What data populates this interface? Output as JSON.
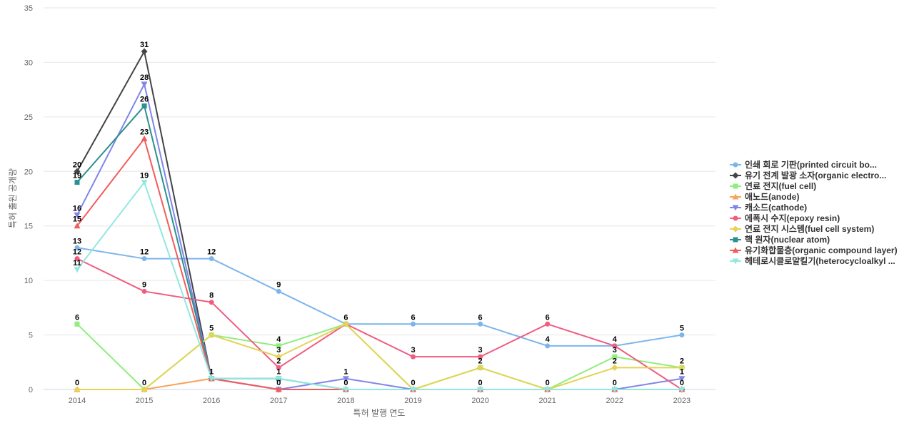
{
  "chart_data": {
    "type": "line",
    "xlabel": "특허 발행 연도",
    "ylabel": "특허 출원 공개량",
    "ylim": [
      0,
      35
    ],
    "yticks": [
      0,
      5,
      10,
      15,
      20,
      25,
      30,
      35
    ],
    "grid": true,
    "legend_position": "right",
    "categories": [
      "2014",
      "2015",
      "2016",
      "2017",
      "2018",
      "2019",
      "2020",
      "2021",
      "2022",
      "2023"
    ],
    "series": [
      {
        "name": "인쇄 회로 기판(printed circuit bo...",
        "color": "#7cb5ec",
        "marker": "circle",
        "values": [
          13,
          12,
          12,
          9,
          6,
          6,
          6,
          4,
          4,
          5
        ]
      },
      {
        "name": "유기 전계 발광 소자(organic electro...",
        "color": "#434348",
        "marker": "diamond",
        "values": [
          20,
          31,
          1,
          0,
          0,
          0,
          0,
          0,
          0,
          0
        ]
      },
      {
        "name": "연료 전지(fuel cell)",
        "color": "#90ed7d",
        "marker": "square",
        "values": [
          6,
          0,
          5,
          4,
          6,
          0,
          2,
          0,
          3,
          2
        ]
      },
      {
        "name": "애노드(anode)",
        "color": "#f7a35c",
        "marker": "triangle",
        "values": [
          0,
          0,
          1,
          0,
          0,
          0,
          0,
          0,
          0,
          0
        ]
      },
      {
        "name": "캐소드(cathode)",
        "color": "#8085e9",
        "marker": "triangle-down",
        "values": [
          16,
          28,
          1,
          0,
          1,
          0,
          0,
          0,
          0,
          1
        ]
      },
      {
        "name": "에폭시 수지(epoxy resin)",
        "color": "#f15c80",
        "marker": "circle",
        "values": [
          12,
          9,
          8,
          2,
          6,
          3,
          3,
          6,
          4,
          0
        ]
      },
      {
        "name": "연료 전지 시스템(fuel cell system)",
        "color": "#e4d354",
        "marker": "diamond",
        "values": [
          0,
          0,
          5,
          3,
          6,
          0,
          2,
          0,
          2,
          2
        ]
      },
      {
        "name": "핵 원자(nuclear atom)",
        "color": "#2b908f",
        "marker": "square",
        "values": [
          19,
          26,
          1,
          1,
          0,
          0,
          0,
          0,
          0,
          0
        ]
      },
      {
        "name": "유기화합물층(organic compound layer)",
        "color": "#f45b5b",
        "marker": "triangle",
        "values": [
          15,
          23,
          1,
          0,
          0,
          0,
          0,
          0,
          0,
          0
        ]
      },
      {
        "name": "헤테로시클로알킬기(heterocycloalkyl ...",
        "color": "#91e8e1",
        "marker": "triangle-down",
        "values": [
          11,
          19,
          1,
          1,
          0,
          0,
          0,
          0,
          0,
          0
        ]
      }
    ],
    "data_labels": [
      {
        "category": "2014",
        "value": 20,
        "text": "20"
      },
      {
        "category": "2014",
        "value": 19,
        "text": "19"
      },
      {
        "category": "2014",
        "value": 16,
        "text": "16"
      },
      {
        "category": "2014",
        "value": 15,
        "text": "15"
      },
      {
        "category": "2014",
        "value": 13,
        "text": "13"
      },
      {
        "category": "2014",
        "value": 12,
        "text": "12"
      },
      {
        "category": "2014",
        "value": 11,
        "text": "11"
      },
      {
        "category": "2014",
        "value": 6,
        "text": "6"
      },
      {
        "category": "2014",
        "value": 0,
        "text": "0"
      },
      {
        "category": "2015",
        "value": 31,
        "text": "31"
      },
      {
        "category": "2015",
        "value": 28,
        "text": "28"
      },
      {
        "category": "2015",
        "value": 26,
        "text": "26"
      },
      {
        "category": "2015",
        "value": 23,
        "text": "23"
      },
      {
        "category": "2015",
        "value": 19,
        "text": "19"
      },
      {
        "category": "2015",
        "value": 12,
        "text": "12"
      },
      {
        "category": "2015",
        "value": 9,
        "text": "9"
      },
      {
        "category": "2015",
        "value": 0,
        "text": "0"
      },
      {
        "category": "2016",
        "value": 12,
        "text": "12"
      },
      {
        "category": "2016",
        "value": 8,
        "text": "8"
      },
      {
        "category": "2016",
        "value": 5,
        "text": "5"
      },
      {
        "category": "2016",
        "value": 1,
        "text": "1"
      },
      {
        "category": "2017",
        "value": 9,
        "text": "9"
      },
      {
        "category": "2017",
        "value": 4,
        "text": "4"
      },
      {
        "category": "2017",
        "value": 3,
        "text": "3"
      },
      {
        "category": "2017",
        "value": 2,
        "text": "2"
      },
      {
        "category": "2017",
        "value": 1,
        "text": "1"
      },
      {
        "category": "2017",
        "value": 0,
        "text": "0"
      },
      {
        "category": "2018",
        "value": 6,
        "text": "6"
      },
      {
        "category": "2018",
        "value": 1,
        "text": "1"
      },
      {
        "category": "2018",
        "value": 0,
        "text": "0"
      },
      {
        "category": "2019",
        "value": 6,
        "text": "6"
      },
      {
        "category": "2019",
        "value": 3,
        "text": "3"
      },
      {
        "category": "2019",
        "value": 0,
        "text": "0"
      },
      {
        "category": "2020",
        "value": 6,
        "text": "6"
      },
      {
        "category": "2020",
        "value": 3,
        "text": "3"
      },
      {
        "category": "2020",
        "value": 2,
        "text": "2"
      },
      {
        "category": "2020",
        "value": 0,
        "text": "0"
      },
      {
        "category": "2021",
        "value": 6,
        "text": "6"
      },
      {
        "category": "2021",
        "value": 4,
        "text": "4"
      },
      {
        "category": "2021",
        "value": 0,
        "text": "0"
      },
      {
        "category": "2022",
        "value": 4,
        "text": "4"
      },
      {
        "category": "2022",
        "value": 3,
        "text": "3"
      },
      {
        "category": "2022",
        "value": 2,
        "text": "2"
      },
      {
        "category": "2022",
        "value": 0,
        "text": "0"
      },
      {
        "category": "2023",
        "value": 5,
        "text": "5"
      },
      {
        "category": "2023",
        "value": 2,
        "text": "2"
      },
      {
        "category": "2023",
        "value": 1,
        "text": "1"
      },
      {
        "category": "2023",
        "value": 0,
        "text": "0"
      }
    ]
  }
}
